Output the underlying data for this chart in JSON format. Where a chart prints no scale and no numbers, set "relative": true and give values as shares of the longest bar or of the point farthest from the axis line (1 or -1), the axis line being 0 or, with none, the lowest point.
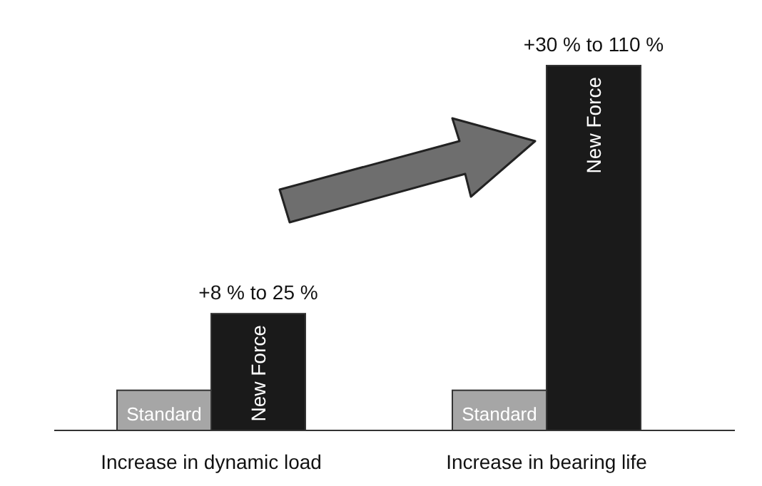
{
  "chart_data": {
    "type": "bar",
    "relative": true,
    "categories": [
      "Increase in dynamic load",
      "Increase in bearing life"
    ],
    "series": [
      {
        "name": "Standard",
        "color": "#a6a6a6",
        "values": [
          0.11,
          0.11
        ]
      },
      {
        "name": "New Force",
        "color": "#1a1a1a",
        "values": [
          0.32,
          1
        ]
      }
    ],
    "annotations": [
      {
        "text": "+8 % to 25 %",
        "x": "Increase in dynamic load",
        "y": 0.32
      },
      {
        "text": "+30 % to 110 %",
        "x": "Increase in bearing life",
        "y": 1
      }
    ],
    "legend": false
  }
}
